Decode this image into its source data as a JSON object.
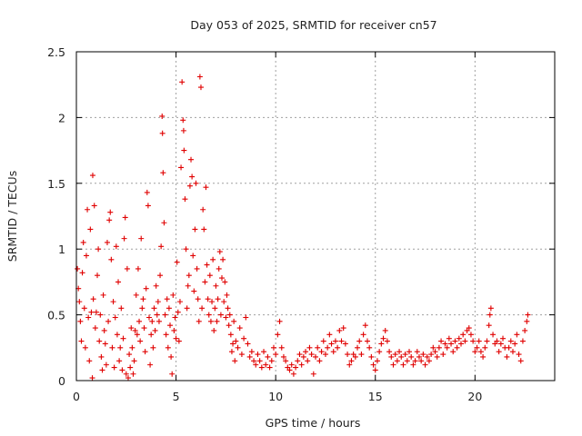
{
  "chart_data": {
    "type": "scatter",
    "title": "Day 053 of 2025, SRMTID for receiver cn57",
    "xlabel": "GPS time / hours",
    "ylabel": "SRMTID / TECUs",
    "xlim": [
      0,
      24
    ],
    "ylim": [
      0,
      2.5
    ],
    "x_ticks": [
      0,
      5,
      10,
      15,
      20
    ],
    "x_tick_labels": [
      "0",
      "5",
      "10",
      "15",
      "20"
    ],
    "y_ticks": [
      0,
      0.5,
      1,
      1.5,
      2,
      2.5
    ],
    "y_tick_labels": [
      "0",
      "0.5",
      "1",
      "1.5",
      "2",
      "2.5"
    ],
    "grid": true,
    "marker": "+",
    "color": "#e00000",
    "series": [
      {
        "name": "SRMTID",
        "points": [
          [
            0.05,
            0.85
          ],
          [
            0.1,
            0.7
          ],
          [
            0.15,
            0.6
          ],
          [
            0.2,
            0.45
          ],
          [
            0.25,
            0.3
          ],
          [
            0.3,
            0.82
          ],
          [
            0.35,
            1.05
          ],
          [
            0.4,
            0.55
          ],
          [
            0.45,
            0.25
          ],
          [
            0.5,
            0.95
          ],
          [
            0.55,
            1.3
          ],
          [
            0.6,
            0.48
          ],
          [
            0.65,
            0.15
          ],
          [
            0.7,
            1.15
          ],
          [
            0.75,
            0.52
          ],
          [
            0.8,
            0.02
          ],
          [
            0.82,
            1.56
          ],
          [
            0.85,
            0.62
          ],
          [
            0.9,
            1.33
          ],
          [
            0.95,
            0.4
          ],
          [
            1.0,
            0.52
          ],
          [
            1.05,
            0.8
          ],
          [
            1.1,
            1.0
          ],
          [
            1.15,
            0.3
          ],
          [
            1.2,
            0.5
          ],
          [
            1.25,
            0.18
          ],
          [
            1.3,
            0.08
          ],
          [
            1.35,
            0.65
          ],
          [
            1.4,
            0.38
          ],
          [
            1.45,
            0.28
          ],
          [
            1.5,
            0.12
          ],
          [
            1.55,
            1.05
          ],
          [
            1.6,
            0.45
          ],
          [
            1.65,
            1.22
          ],
          [
            1.7,
            1.28
          ],
          [
            1.75,
            0.92
          ],
          [
            1.8,
            0.25
          ],
          [
            1.85,
            0.6
          ],
          [
            1.9,
            0.1
          ],
          [
            1.95,
            0.48
          ],
          [
            2.0,
            1.02
          ],
          [
            2.05,
            0.35
          ],
          [
            2.1,
            0.75
          ],
          [
            2.15,
            0.15
          ],
          [
            2.2,
            0.25
          ],
          [
            2.25,
            0.55
          ],
          [
            2.3,
            0.08
          ],
          [
            2.35,
            0.32
          ],
          [
            2.4,
            1.08
          ],
          [
            2.45,
            1.24
          ],
          [
            2.5,
            0.05
          ],
          [
            2.55,
            0.85
          ],
          [
            2.6,
            0.02
          ],
          [
            2.65,
            0.2
          ],
          [
            2.7,
            0.1
          ],
          [
            2.75,
            0.4
          ],
          [
            2.8,
            0.25
          ],
          [
            2.85,
            0.05
          ],
          [
            2.9,
            0.15
          ],
          [
            2.95,
            0.38
          ],
          [
            3.0,
            0.65
          ],
          [
            3.05,
            0.35
          ],
          [
            3.1,
            0.85
          ],
          [
            3.15,
            0.45
          ],
          [
            3.2,
            0.3
          ],
          [
            3.25,
            1.08
          ],
          [
            3.3,
            0.55
          ],
          [
            3.35,
            0.62
          ],
          [
            3.4,
            0.4
          ],
          [
            3.45,
            0.22
          ],
          [
            3.5,
            0.7
          ],
          [
            3.55,
            1.43
          ],
          [
            3.6,
            1.33
          ],
          [
            3.65,
            0.48
          ],
          [
            3.7,
            0.12
          ],
          [
            3.75,
            0.35
          ],
          [
            3.8,
            0.45
          ],
          [
            3.85,
            0.25
          ],
          [
            3.9,
            0.55
          ],
          [
            3.95,
            0.38
          ],
          [
            4.0,
            0.72
          ],
          [
            4.05,
            0.5
          ],
          [
            4.1,
            0.6
          ],
          [
            4.15,
            0.45
          ],
          [
            4.2,
            0.8
          ],
          [
            4.25,
            1.02
          ],
          [
            4.3,
            2.01
          ],
          [
            4.32,
            1.88
          ],
          [
            4.35,
            1.58
          ],
          [
            4.4,
            1.2
          ],
          [
            4.45,
            0.5
          ],
          [
            4.5,
            0.35
          ],
          [
            4.55,
            0.62
          ],
          [
            4.6,
            0.25
          ],
          [
            4.65,
            0.55
          ],
          [
            4.7,
            0.42
          ],
          [
            4.75,
            0.18
          ],
          [
            4.8,
            0.05
          ],
          [
            4.85,
            0.65
          ],
          [
            4.9,
            0.38
          ],
          [
            4.95,
            0.48
          ],
          [
            5.0,
            0.32
          ],
          [
            5.05,
            0.9
          ],
          [
            5.1,
            0.52
          ],
          [
            5.15,
            0.3
          ],
          [
            5.2,
            0.6
          ],
          [
            5.25,
            1.62
          ],
          [
            5.3,
            2.27
          ],
          [
            5.35,
            1.98
          ],
          [
            5.38,
            1.9
          ],
          [
            5.4,
            1.75
          ],
          [
            5.45,
            1.38
          ],
          [
            5.5,
            1.0
          ],
          [
            5.55,
            0.55
          ],
          [
            5.6,
            0.72
          ],
          [
            5.65,
            0.8
          ],
          [
            5.7,
            1.48
          ],
          [
            5.75,
            1.68
          ],
          [
            5.8,
            1.55
          ],
          [
            5.85,
            0.95
          ],
          [
            5.9,
            0.68
          ],
          [
            5.95,
            1.15
          ],
          [
            6.0,
            1.5
          ],
          [
            6.05,
            0.85
          ],
          [
            6.1,
            0.62
          ],
          [
            6.15,
            0.45
          ],
          [
            6.2,
            2.31
          ],
          [
            6.25,
            2.23
          ],
          [
            6.3,
            0.55
          ],
          [
            6.35,
            1.3
          ],
          [
            6.4,
            1.15
          ],
          [
            6.45,
            0.75
          ],
          [
            6.5,
            1.47
          ],
          [
            6.55,
            0.88
          ],
          [
            6.6,
            0.62
          ],
          [
            6.65,
            0.5
          ],
          [
            6.7,
            0.8
          ],
          [
            6.75,
            0.45
          ],
          [
            6.8,
            0.6
          ],
          [
            6.85,
            0.92
          ],
          [
            6.9,
            0.38
          ],
          [
            6.95,
            0.55
          ],
          [
            7.0,
            0.72
          ],
          [
            7.05,
            0.45
          ],
          [
            7.1,
            0.62
          ],
          [
            7.15,
            0.85
          ],
          [
            7.2,
            0.98
          ],
          [
            7.25,
            0.5
          ],
          [
            7.3,
            0.78
          ],
          [
            7.35,
            0.92
          ],
          [
            7.4,
            0.6
          ],
          [
            7.45,
            0.75
          ],
          [
            7.5,
            0.48
          ],
          [
            7.55,
            0.65
          ],
          [
            7.6,
            0.55
          ],
          [
            7.65,
            0.42
          ],
          [
            7.7,
            0.5
          ],
          [
            7.75,
            0.35
          ],
          [
            7.8,
            0.22
          ],
          [
            7.85,
            0.28
          ],
          [
            7.9,
            0.45
          ],
          [
            7.95,
            0.15
          ],
          [
            8.0,
            0.3
          ],
          [
            8.1,
            0.25
          ],
          [
            8.2,
            0.4
          ],
          [
            8.3,
            0.2
          ],
          [
            8.4,
            0.32
          ],
          [
            8.5,
            0.48
          ],
          [
            8.6,
            0.28
          ],
          [
            8.7,
            0.18
          ],
          [
            8.8,
            0.22
          ],
          [
            8.9,
            0.15
          ],
          [
            9.0,
            0.12
          ],
          [
            9.1,
            0.2
          ],
          [
            9.2,
            0.15
          ],
          [
            9.3,
            0.1
          ],
          [
            9.4,
            0.22
          ],
          [
            9.5,
            0.12
          ],
          [
            9.6,
            0.18
          ],
          [
            9.7,
            0.1
          ],
          [
            9.8,
            0.15
          ],
          [
            9.9,
            0.25
          ],
          [
            10.0,
            0.2
          ],
          [
            10.1,
            0.35
          ],
          [
            10.2,
            0.45
          ],
          [
            10.3,
            0.25
          ],
          [
            10.4,
            0.18
          ],
          [
            10.5,
            0.15
          ],
          [
            10.6,
            0.1
          ],
          [
            10.7,
            0.08
          ],
          [
            10.8,
            0.12
          ],
          [
            10.9,
            0.05
          ],
          [
            11.0,
            0.1
          ],
          [
            11.1,
            0.15
          ],
          [
            11.2,
            0.2
          ],
          [
            11.3,
            0.12
          ],
          [
            11.4,
            0.18
          ],
          [
            11.5,
            0.22
          ],
          [
            11.6,
            0.15
          ],
          [
            11.7,
            0.25
          ],
          [
            11.8,
            0.2
          ],
          [
            11.9,
            0.05
          ],
          [
            12.0,
            0.18
          ],
          [
            12.1,
            0.25
          ],
          [
            12.2,
            0.15
          ],
          [
            12.3,
            0.22
          ],
          [
            12.4,
            0.3
          ],
          [
            12.5,
            0.2
          ],
          [
            12.6,
            0.25
          ],
          [
            12.7,
            0.35
          ],
          [
            12.8,
            0.28
          ],
          [
            12.9,
            0.22
          ],
          [
            13.0,
            0.3
          ],
          [
            13.1,
            0.25
          ],
          [
            13.2,
            0.38
          ],
          [
            13.3,
            0.3
          ],
          [
            13.4,
            0.4
          ],
          [
            13.5,
            0.28
          ],
          [
            13.6,
            0.2
          ],
          [
            13.7,
            0.12
          ],
          [
            13.8,
            0.15
          ],
          [
            13.9,
            0.2
          ],
          [
            14.0,
            0.18
          ],
          [
            14.1,
            0.25
          ],
          [
            14.2,
            0.3
          ],
          [
            14.3,
            0.2
          ],
          [
            14.4,
            0.35
          ],
          [
            14.5,
            0.42
          ],
          [
            14.6,
            0.3
          ],
          [
            14.7,
            0.25
          ],
          [
            14.8,
            0.18
          ],
          [
            14.9,
            0.12
          ],
          [
            15.0,
            0.08
          ],
          [
            15.1,
            0.15
          ],
          [
            15.2,
            0.22
          ],
          [
            15.3,
            0.28
          ],
          [
            15.4,
            0.32
          ],
          [
            15.5,
            0.38
          ],
          [
            15.6,
            0.3
          ],
          [
            15.7,
            0.22
          ],
          [
            15.8,
            0.18
          ],
          [
            15.9,
            0.12
          ],
          [
            16.0,
            0.2
          ],
          [
            16.1,
            0.15
          ],
          [
            16.2,
            0.22
          ],
          [
            16.3,
            0.18
          ],
          [
            16.4,
            0.12
          ],
          [
            16.5,
            0.2
          ],
          [
            16.6,
            0.15
          ],
          [
            16.7,
            0.22
          ],
          [
            16.8,
            0.18
          ],
          [
            16.9,
            0.12
          ],
          [
            17.0,
            0.15
          ],
          [
            17.1,
            0.22
          ],
          [
            17.2,
            0.18
          ],
          [
            17.3,
            0.15
          ],
          [
            17.4,
            0.2
          ],
          [
            17.5,
            0.12
          ],
          [
            17.6,
            0.18
          ],
          [
            17.7,
            0.15
          ],
          [
            17.8,
            0.2
          ],
          [
            17.9,
            0.25
          ],
          [
            18.0,
            0.22
          ],
          [
            18.1,
            0.18
          ],
          [
            18.2,
            0.25
          ],
          [
            18.3,
            0.3
          ],
          [
            18.4,
            0.2
          ],
          [
            18.5,
            0.28
          ],
          [
            18.6,
            0.25
          ],
          [
            18.7,
            0.32
          ],
          [
            18.8,
            0.28
          ],
          [
            18.9,
            0.22
          ],
          [
            19.0,
            0.3
          ],
          [
            19.1,
            0.25
          ],
          [
            19.2,
            0.32
          ],
          [
            19.3,
            0.28
          ],
          [
            19.4,
            0.35
          ],
          [
            19.5,
            0.3
          ],
          [
            19.6,
            0.38
          ],
          [
            19.7,
            0.4
          ],
          [
            19.8,
            0.35
          ],
          [
            19.9,
            0.3
          ],
          [
            20.0,
            0.22
          ],
          [
            20.1,
            0.25
          ],
          [
            20.2,
            0.3
          ],
          [
            20.3,
            0.22
          ],
          [
            20.4,
            0.18
          ],
          [
            20.5,
            0.25
          ],
          [
            20.6,
            0.3
          ],
          [
            20.7,
            0.42
          ],
          [
            20.75,
            0.5
          ],
          [
            20.8,
            0.55
          ],
          [
            20.9,
            0.35
          ],
          [
            21.0,
            0.28
          ],
          [
            21.1,
            0.3
          ],
          [
            21.2,
            0.22
          ],
          [
            21.3,
            0.28
          ],
          [
            21.4,
            0.32
          ],
          [
            21.5,
            0.25
          ],
          [
            21.6,
            0.18
          ],
          [
            21.7,
            0.25
          ],
          [
            21.8,
            0.3
          ],
          [
            21.9,
            0.22
          ],
          [
            22.0,
            0.28
          ],
          [
            22.1,
            0.35
          ],
          [
            22.2,
            0.2
          ],
          [
            22.3,
            0.15
          ],
          [
            22.4,
            0.3
          ],
          [
            22.5,
            0.38
          ],
          [
            22.6,
            0.45
          ],
          [
            22.65,
            0.5
          ]
        ]
      }
    ]
  }
}
